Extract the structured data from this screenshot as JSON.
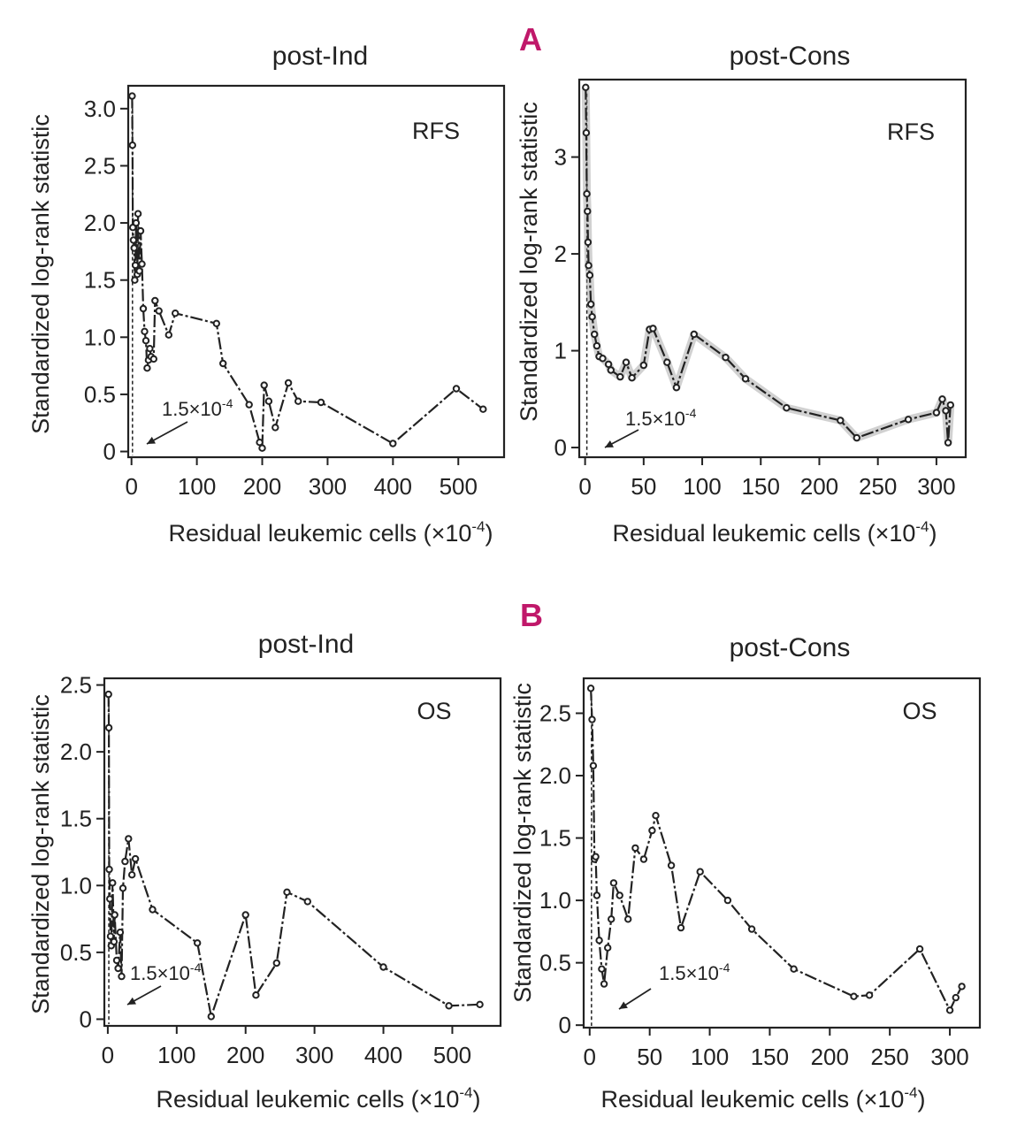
{
  "figure": {
    "panel_a_label": "A",
    "panel_b_label": "B",
    "arrow_annotation": "1.5×10",
    "arrow_annotation_exp": "-4"
  },
  "chart_data": [
    {
      "id": "a-left",
      "type": "line",
      "panel": "A",
      "title": "post-Ind",
      "metric": "RFS",
      "xlabel": "Residual leukemic cells (×10",
      "xlabel_exp": "-4",
      "xlabel_close": ")",
      "ylabel": "Standardized log-rank statistic",
      "xlim": [
        -5,
        570
      ],
      "ylim": [
        -0.05,
        3.2
      ],
      "xticks": [
        0,
        100,
        200,
        300,
        400,
        500
      ],
      "yticks": [
        0,
        0.5,
        1.0,
        1.5,
        2.0,
        2.5,
        3.0
      ],
      "ytick_labels": [
        "0",
        "0.5",
        "1.0",
        "1.5",
        "2.0",
        "2.5",
        "3.0"
      ],
      "halo": false,
      "cutoff": 1.5,
      "x": [
        1,
        1.5,
        2,
        3,
        4,
        5,
        6,
        7,
        9,
        10,
        12,
        14,
        16,
        18,
        20,
        22,
        24,
        26,
        28,
        30,
        34,
        36,
        42,
        57,
        67,
        130,
        140,
        180,
        196,
        200,
        203,
        210,
        220,
        240,
        255,
        290,
        400,
        497,
        538
      ],
      "y": [
        3.11,
        2.68,
        1.96,
        1.85,
        1.78,
        1.5,
        1.63,
        2.0,
        1.55,
        2.08,
        1.58,
        1.93,
        1.64,
        1.25,
        1.05,
        0.97,
        0.73,
        0.8,
        0.9,
        0.83,
        0.81,
        1.32,
        1.23,
        1.02,
        1.21,
        1.12,
        0.77,
        0.41,
        0.08,
        0.03,
        0.58,
        0.44,
        0.21,
        0.6,
        0.44,
        0.43,
        0.07,
        0.55,
        0.37
      ]
    },
    {
      "id": "a-right",
      "type": "line",
      "panel": "A",
      "title": "post-Cons",
      "metric": "RFS",
      "xlabel": "Residual leukemic cells (×10",
      "xlabel_exp": "-4",
      "xlabel_close": ")",
      "ylabel": "Standardized log-rank statistic",
      "xlim": [
        -5,
        325
      ],
      "ylim": [
        -0.1,
        3.8
      ],
      "xticks": [
        0,
        50,
        100,
        150,
        200,
        250,
        300
      ],
      "yticks": [
        0,
        1,
        2,
        3
      ],
      "ytick_labels": [
        "0",
        "1",
        "2",
        "3"
      ],
      "halo": true,
      "cutoff": 1.5,
      "x": [
        0.5,
        1,
        1.5,
        2,
        2.5,
        3,
        4,
        5,
        6,
        8,
        10,
        12,
        15,
        20,
        22,
        30,
        35,
        40,
        50,
        55,
        58,
        70,
        78,
        93,
        120,
        137,
        172,
        218,
        232,
        276,
        300,
        305,
        308,
        310,
        312
      ],
      "y": [
        3.72,
        3.25,
        2.62,
        2.44,
        2.12,
        1.88,
        1.78,
        1.48,
        1.35,
        1.17,
        1.05,
        0.94,
        0.92,
        0.86,
        0.8,
        0.73,
        0.88,
        0.72,
        0.85,
        1.22,
        1.23,
        0.88,
        0.62,
        1.17,
        0.93,
        0.71,
        0.41,
        0.28,
        0.1,
        0.29,
        0.36,
        0.5,
        0.38,
        0.05,
        0.44
      ]
    },
    {
      "id": "b-left",
      "type": "line",
      "panel": "B",
      "title": "post-Ind",
      "metric": "OS",
      "xlabel": "Residual leukemic cells (×10",
      "xlabel_exp": "-4",
      "xlabel_close": ")",
      "ylabel": "Standardized log-rank statistic",
      "xlim": [
        -5,
        570
      ],
      "ylim": [
        -0.05,
        2.55
      ],
      "xticks": [
        0,
        100,
        200,
        300,
        400,
        500
      ],
      "yticks": [
        0,
        0.5,
        1.0,
        1.5,
        2.0,
        2.5
      ],
      "ytick_labels": [
        "0",
        "0.5",
        "1.0",
        "1.5",
        "2.0",
        "2.5"
      ],
      "halo": false,
      "cutoff": 1.5,
      "x": [
        1,
        1.5,
        2,
        3,
        4,
        5,
        7,
        9,
        10,
        13,
        15,
        18,
        20,
        22,
        25,
        30,
        35,
        40,
        65,
        130,
        150,
        200,
        215,
        245,
        260,
        290,
        400,
        495,
        540
      ],
      "y": [
        2.43,
        2.18,
        1.12,
        0.9,
        0.62,
        0.55,
        1.02,
        0.58,
        0.78,
        0.44,
        0.38,
        0.65,
        0.32,
        0.98,
        1.18,
        1.35,
        1.08,
        1.2,
        0.82,
        0.57,
        0.02,
        0.78,
        0.18,
        0.42,
        0.95,
        0.88,
        0.39,
        0.1,
        0.11
      ]
    },
    {
      "id": "b-right",
      "type": "line",
      "panel": "B",
      "title": "post-Cons",
      "metric": "OS",
      "xlabel": "Residual leukemic cells (×10",
      "xlabel_exp": "-4",
      "xlabel_close": ")",
      "ylabel": "Standardized log-rank statistic",
      "xlim": [
        -5,
        325
      ],
      "ylim": [
        -0.02,
        2.78
      ],
      "xticks": [
        0,
        50,
        100,
        150,
        200,
        250,
        300
      ],
      "yticks": [
        0,
        0.5,
        1.0,
        1.5,
        2.0,
        2.5
      ],
      "ytick_labels": [
        "0",
        "0.5",
        "1.0",
        "1.5",
        "2.0",
        "2.5"
      ],
      "halo": false,
      "cutoff": 1.5,
      "x": [
        1,
        2,
        3,
        4,
        5,
        6,
        8,
        10,
        12,
        15,
        18,
        20,
        25,
        32,
        38,
        45,
        52,
        55,
        68,
        76,
        92,
        115,
        135,
        170,
        220,
        233,
        275,
        300,
        305,
        310
      ],
      "y": [
        2.7,
        2.45,
        2.08,
        1.33,
        1.35,
        1.04,
        0.68,
        0.45,
        0.33,
        0.62,
        0.85,
        1.14,
        1.04,
        0.85,
        1.42,
        1.33,
        1.56,
        1.68,
        1.28,
        0.78,
        1.23,
        1.0,
        0.77,
        0.45,
        0.23,
        0.24,
        0.61,
        0.12,
        0.22,
        0.31
      ]
    }
  ]
}
